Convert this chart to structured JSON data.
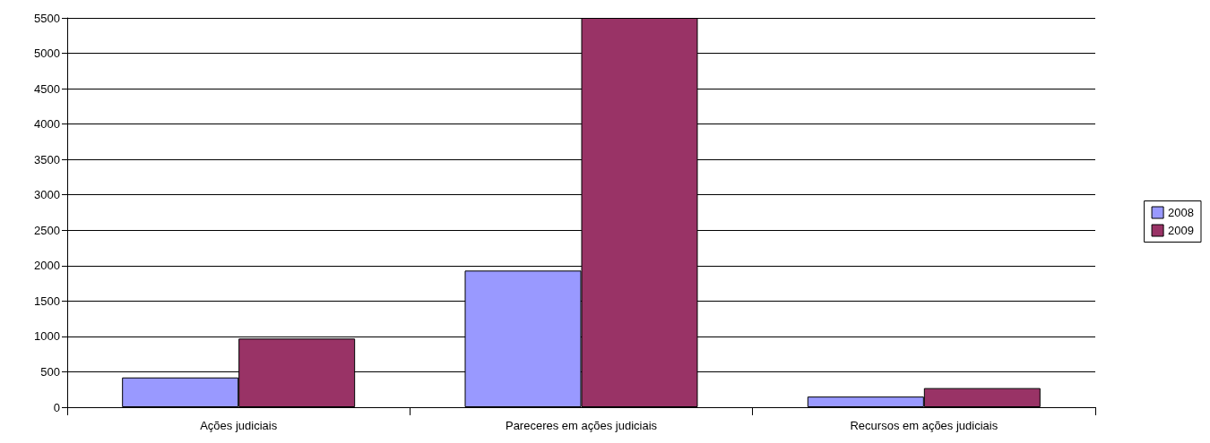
{
  "chart_data": {
    "type": "bar",
    "categories": [
      "Ações judiciais",
      "Pareceres em ações judiciais",
      "Recursos em ações judiciais"
    ],
    "series": [
      {
        "name": "2008",
        "color": "#9999ff",
        "values": [
          420,
          1930,
          150
        ]
      },
      {
        "name": "2009",
        "color": "#993366",
        "values": [
          970,
          5500,
          270
        ]
      }
    ],
    "ylim": [
      0,
      5500
    ],
    "yticks": [
      0,
      500,
      1000,
      1500,
      2000,
      2500,
      3000,
      3500,
      4000,
      4500,
      5000,
      5500
    ],
    "grid": "y",
    "legend": "right"
  }
}
